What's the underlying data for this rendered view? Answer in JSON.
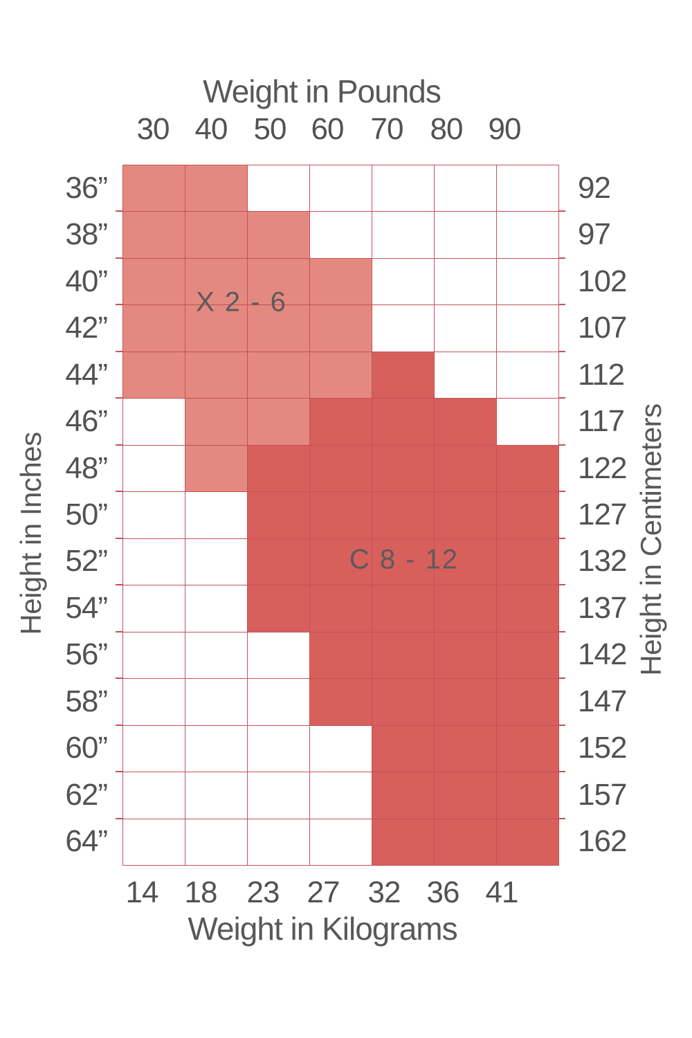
{
  "chart_data": {
    "type": "heatmap",
    "description": "Children's clothing size chart mapping height vs weight to size ranges",
    "top_axis": {
      "title": "Weight in Pounds",
      "ticks": [
        "30",
        "40",
        "50",
        "60",
        "70",
        "80",
        "90"
      ]
    },
    "bottom_axis": {
      "title": "Weight in Kilograms",
      "ticks": [
        "14",
        "18",
        "23",
        "27",
        "32",
        "36",
        "41"
      ]
    },
    "left_axis": {
      "title": "Height in Inches",
      "ticks": [
        "36”",
        "38”",
        "40”",
        "42”",
        "44”",
        "46”",
        "48”",
        "50”",
        "52”",
        "54”",
        "56”",
        "58”",
        "60”",
        "62”",
        "64”"
      ]
    },
    "right_axis": {
      "title": "Height in Centimeters",
      "ticks": [
        "92",
        "97",
        "102",
        "107",
        "112",
        "117",
        "122",
        "127",
        "132",
        "137",
        "142",
        "147",
        "152",
        "157",
        "162"
      ]
    },
    "regions": [
      {
        "id": 1,
        "label": "X 2 - 6",
        "color": "#e4897f"
      },
      {
        "id": 2,
        "label": "C 8 - 12",
        "color": "#d7605c"
      }
    ],
    "grid": [
      [
        1,
        1,
        0,
        0,
        0,
        0,
        0
      ],
      [
        1,
        1,
        1,
        0,
        0,
        0,
        0
      ],
      [
        1,
        1,
        1,
        1,
        0,
        0,
        0
      ],
      [
        1,
        1,
        1,
        1,
        0,
        0,
        0
      ],
      [
        1,
        1,
        1,
        1,
        2,
        0,
        0
      ],
      [
        0,
        1,
        1,
        2,
        2,
        2,
        0
      ],
      [
        0,
        1,
        2,
        2,
        2,
        2,
        2
      ],
      [
        0,
        0,
        2,
        2,
        2,
        2,
        2
      ],
      [
        0,
        0,
        2,
        2,
        2,
        2,
        2
      ],
      [
        0,
        0,
        2,
        2,
        2,
        2,
        2
      ],
      [
        0,
        0,
        0,
        2,
        2,
        2,
        2
      ],
      [
        0,
        0,
        0,
        2,
        2,
        2,
        2
      ],
      [
        0,
        0,
        0,
        0,
        2,
        2,
        2
      ],
      [
        0,
        0,
        0,
        0,
        2,
        2,
        2
      ],
      [
        0,
        0,
        0,
        0,
        2,
        2,
        2
      ]
    ],
    "colors": {
      "empty": "#ffffff",
      "light": "#e4897f",
      "dark": "#d7605c",
      "gridline": "#c4505c",
      "text": "#58585a"
    },
    "legend_position": "inside-plot",
    "grid_on": true
  }
}
